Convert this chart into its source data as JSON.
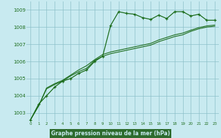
{
  "title": "Graphe pression niveau de la mer (hPa)",
  "bg_color": "#c8eaf0",
  "grid_color": "#8bbfc8",
  "line_color": "#1a6b1a",
  "xlabel_bg": "#2d6b2d",
  "xlabel_fg": "#c8eaf0",
  "xlim": [
    -0.5,
    23.5
  ],
  "ylim": [
    1002.5,
    1009.5
  ],
  "yticks": [
    1003,
    1004,
    1005,
    1006,
    1007,
    1008,
    1009
  ],
  "xticks": [
    0,
    1,
    2,
    3,
    4,
    5,
    6,
    7,
    8,
    9,
    10,
    11,
    12,
    13,
    14,
    15,
    16,
    17,
    18,
    19,
    20,
    21,
    22,
    23
  ],
  "series_main": [
    1002.6,
    1003.5,
    1004.0,
    1004.5,
    1004.85,
    1005.0,
    1005.3,
    1005.5,
    1006.0,
    1006.3,
    1008.1,
    1008.9,
    1008.8,
    1008.75,
    1008.55,
    1008.45,
    1008.7,
    1008.5,
    1008.9,
    1008.9,
    1008.65,
    1008.75,
    1008.4,
    1008.4
  ],
  "series_lo1": [
    1002.6,
    1003.4,
    1004.4,
    1004.65,
    1004.85,
    1005.15,
    1005.4,
    1005.6,
    1006.05,
    1006.3,
    1006.45,
    1006.55,
    1006.65,
    1006.75,
    1006.85,
    1006.95,
    1007.15,
    1007.3,
    1007.45,
    1007.55,
    1007.75,
    1007.9,
    1008.0,
    1008.05
  ],
  "series_lo2": [
    1002.6,
    1003.4,
    1004.45,
    1004.7,
    1004.9,
    1005.2,
    1005.5,
    1005.75,
    1006.1,
    1006.4,
    1006.55,
    1006.65,
    1006.75,
    1006.85,
    1006.95,
    1007.05,
    1007.25,
    1007.4,
    1007.55,
    1007.65,
    1007.82,
    1007.97,
    1008.07,
    1008.12
  ]
}
